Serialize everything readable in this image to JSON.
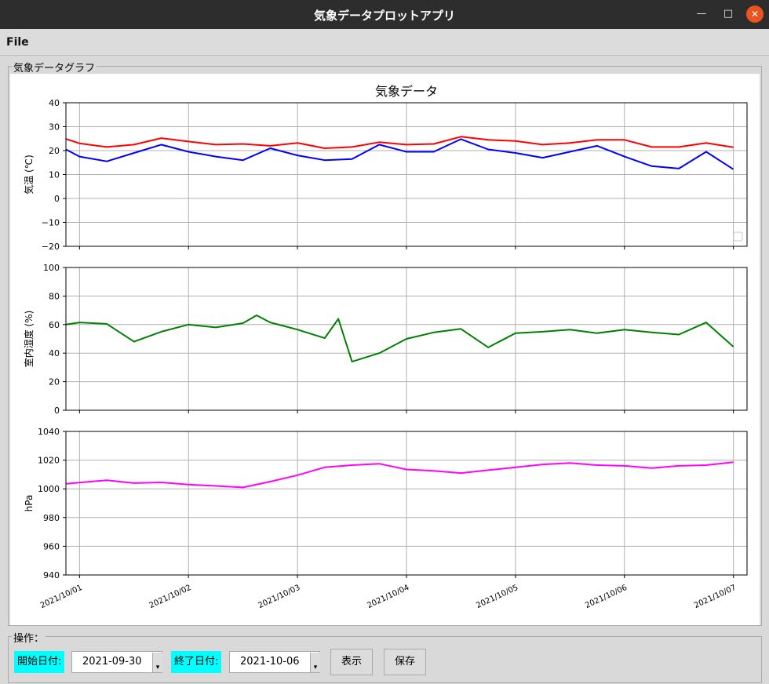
{
  "window": {
    "title": "気象データプロットアプリ",
    "minimize_glyph": "—",
    "maximize_glyph": "□",
    "close_glyph": "✕",
    "close_color": "#e95420"
  },
  "menu": {
    "file_label": "File"
  },
  "graph_group_label": "気象データグラフ",
  "operations": {
    "group_label": "操作：",
    "start_label": "開始日付:",
    "start_value": "2021-09-30",
    "end_label": "終了日付:",
    "end_value": "2021-10-06",
    "show_button": "表示",
    "save_button": "保存",
    "spin_glyph": "▾"
  },
  "chart_data": [
    {
      "type": "line",
      "title": "気象データ",
      "ylabel": "気温 (℃)",
      "ylim": [
        -20,
        40
      ],
      "yticks": [
        "40",
        "30",
        "20",
        "10",
        "0",
        "−10",
        "−20"
      ],
      "grid": true,
      "legend": "bottom-right (empty)",
      "x": [
        "2021/09/30 21:00",
        "2021/10/01 00:00",
        "2021/10/01 06:00",
        "2021/10/01 12:00",
        "2021/10/01 18:00",
        "2021/10/02 00:00",
        "2021/10/02 06:00",
        "2021/10/02 12:00",
        "2021/10/02 18:00",
        "2021/10/03 00:00",
        "2021/10/03 06:00",
        "2021/10/03 12:00",
        "2021/10/03 18:00",
        "2021/10/04 00:00",
        "2021/10/04 06:00",
        "2021/10/04 12:00",
        "2021/10/04 18:00",
        "2021/10/05 00:00",
        "2021/10/05 06:00",
        "2021/10/05 12:00",
        "2021/10/05 18:00",
        "2021/10/06 00:00",
        "2021/10/06 06:00",
        "2021/10/06 12:00",
        "2021/10/06 18:00",
        "2021/10/07 00:00"
      ],
      "series": [
        {
          "color": "#ff0000",
          "values": [
            24.9,
            23.0,
            21.5,
            22.5,
            25.2,
            23.8,
            22.5,
            22.8,
            22.0,
            23.2,
            21.0,
            21.5,
            23.5,
            22.5,
            22.8,
            25.8,
            24.5,
            24.0,
            22.5,
            23.2,
            24.5,
            24.5,
            21.5,
            21.5,
            23.2,
            21.4
          ]
        },
        {
          "color": "#0000ff",
          "values": [
            20.5,
            17.5,
            15.5,
            19.0,
            22.5,
            19.5,
            17.5,
            16.0,
            21.0,
            18.0,
            16.0,
            16.5,
            22.5,
            19.5,
            19.5,
            24.8,
            20.5,
            19.0,
            17.0,
            19.5,
            22.0,
            17.5,
            13.5,
            12.5,
            19.5,
            12.2
          ]
        }
      ]
    },
    {
      "type": "line",
      "ylabel": "室内湿度 (%)",
      "ylim": [
        0,
        100
      ],
      "yticks": [
        "100",
        "80",
        "60",
        "40",
        "20",
        "0"
      ],
      "grid": true,
      "x": [
        "2021/09/30 21:00",
        "2021/10/01 00:00",
        "2021/10/01 06:00",
        "2021/10/01 12:00",
        "2021/10/01 18:00",
        "2021/10/02 00:00",
        "2021/10/02 06:00",
        "2021/10/02 12:00",
        "2021/10/02 15:00",
        "2021/10/02 18:00",
        "2021/10/02 21:00",
        "2021/10/03 00:00",
        "2021/10/03 06:00",
        "2021/10/03 09:00",
        "2021/10/03 12:00",
        "2021/10/03 18:00",
        "2021/10/04 00:00",
        "2021/10/04 06:00",
        "2021/10/04 12:00",
        "2021/10/04 18:00",
        "2021/10/05 00:00",
        "2021/10/05 06:00",
        "2021/10/05 12:00",
        "2021/10/05 18:00",
        "2021/10/06 00:00",
        "2021/10/06 06:00",
        "2021/10/06 12:00",
        "2021/10/06 18:00",
        "2021/10/07 00:00"
      ],
      "series": [
        {
          "color": "#008000",
          "values": [
            60.0,
            61.5,
            60.5,
            48.0,
            55.0,
            60.0,
            58.0,
            61.0,
            66.5,
            61.5,
            59.0,
            56.5,
            50.5,
            64.0,
            34.0,
            40.0,
            50.0,
            54.5,
            57.0,
            44.0,
            54.0,
            55.0,
            56.5,
            54.0,
            56.5,
            54.5,
            53.0,
            61.5,
            44.5
          ]
        }
      ]
    },
    {
      "type": "line",
      "ylabel": "hPa",
      "ylim": [
        940,
        1040
      ],
      "yticks": [
        "1040",
        "1020",
        "1000",
        "980",
        "960",
        "940"
      ],
      "grid": true,
      "x": [
        "2021/09/30 21:00",
        "2021/10/01 06:00",
        "2021/10/01 12:00",
        "2021/10/01 18:00",
        "2021/10/02 00:00",
        "2021/10/02 06:00",
        "2021/10/02 12:00",
        "2021/10/02 18:00",
        "2021/10/03 00:00",
        "2021/10/03 06:00",
        "2021/10/03 12:00",
        "2021/10/03 18:00",
        "2021/10/04 00:00",
        "2021/10/04 06:00",
        "2021/10/04 12:00",
        "2021/10/04 18:00",
        "2021/10/05 00:00",
        "2021/10/05 06:00",
        "2021/10/05 12:00",
        "2021/10/05 18:00",
        "2021/10/06 00:00",
        "2021/10/06 06:00",
        "2021/10/06 12:00",
        "2021/10/06 18:00",
        "2021/10/07 00:00"
      ],
      "series": [
        {
          "color": "#ff00ff",
          "values": [
            1003.5,
            1006.0,
            1004.0,
            1004.5,
            1003.0,
            1002.0,
            1001.0,
            1005.0,
            1009.5,
            1015.0,
            1016.5,
            1017.5,
            1013.5,
            1012.5,
            1011.0,
            1013.0,
            1015.0,
            1017.0,
            1018.0,
            1016.5,
            1016.0,
            1014.5,
            1016.0,
            1016.5,
            1018.5
          ]
        }
      ]
    }
  ],
  "x_axis": {
    "range": [
      "2021/09/30 21:00",
      "2021/10/07 03:00"
    ],
    "tick_labels": [
      "2021/10/01",
      "2021/10/02",
      "2021/10/03",
      "2021/10/04",
      "2021/10/05",
      "2021/10/06",
      "2021/10/07"
    ]
  }
}
